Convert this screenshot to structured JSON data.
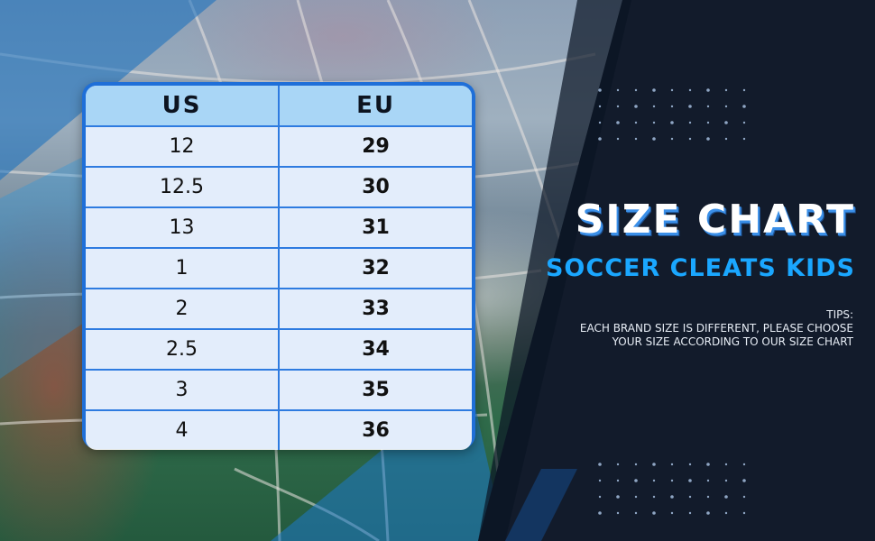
{
  "table": {
    "headers": [
      "US",
      "EU"
    ],
    "rows": [
      [
        "12",
        "29"
      ],
      [
        "12.5",
        "30"
      ],
      [
        "13",
        "31"
      ],
      [
        "1",
        "32"
      ],
      [
        "2",
        "33"
      ],
      [
        "2.5",
        "34"
      ],
      [
        "3",
        "35"
      ],
      [
        "4",
        "36"
      ]
    ]
  },
  "title": "SIZE CHART",
  "subtitle": "SOCCER CLEATS KIDS",
  "tips": {
    "label": "TIPS:",
    "line1": "EACH BRAND SIZE IS DIFFERENT, PLEASE CHOOSE",
    "line2": "YOUR SIZE ACCORDING TO OUR SIZE CHART"
  },
  "colors": {
    "accent_blue": "#1aa7ff",
    "table_border": "#1f6fd8",
    "header_fill": "#a9d6f6",
    "dark_panel": "#121b2b"
  }
}
